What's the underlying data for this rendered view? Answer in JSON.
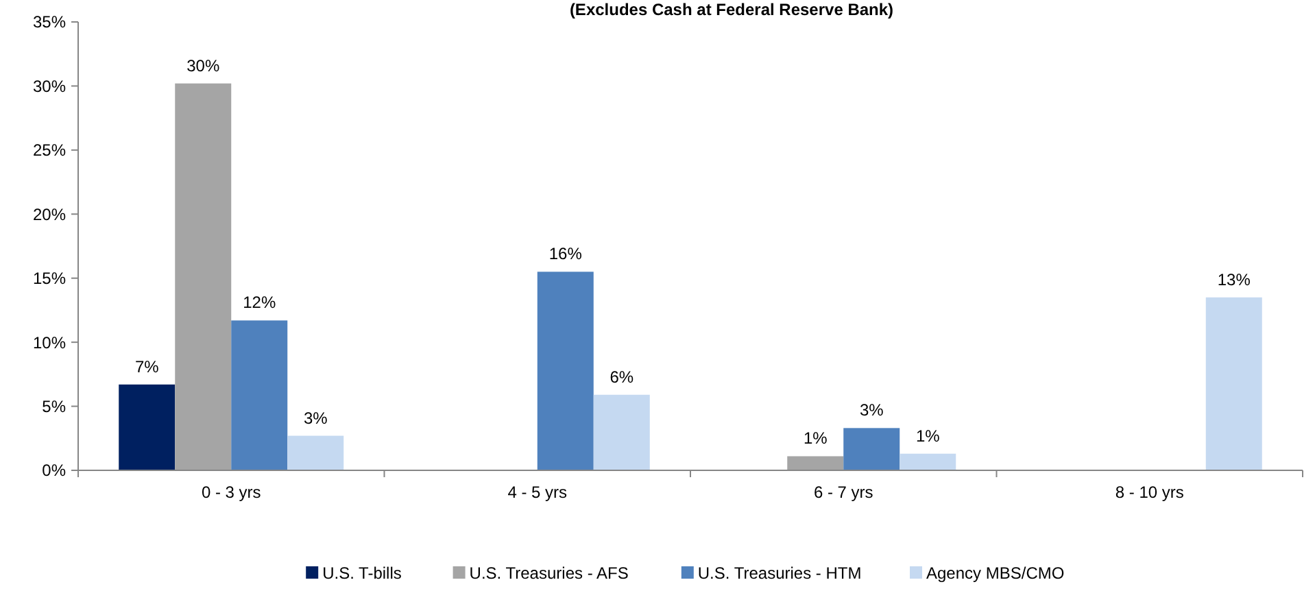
{
  "chart_data": {
    "type": "bar",
    "title": "(Excludes Cash at Federal Reserve Bank)",
    "categories": [
      "0 - 3 yrs",
      "4 - 5 yrs",
      "6 - 7 yrs",
      "8 - 10 yrs"
    ],
    "series": [
      {
        "name": "U.S. T-bills",
        "color": "#002060",
        "values": [
          6.7,
          null,
          null,
          null
        ],
        "value_labels": [
          "7%",
          null,
          null,
          null
        ]
      },
      {
        "name": "U.S. Treasuries - AFS",
        "color": "#a5a5a5",
        "values": [
          30.2,
          null,
          1.1,
          null
        ],
        "value_labels": [
          "30%",
          null,
          "1%",
          null
        ]
      },
      {
        "name": "U.S. Treasuries - HTM",
        "color": "#4f81bd",
        "values": [
          11.7,
          15.5,
          3.3,
          null
        ],
        "value_labels": [
          "12%",
          "16%",
          "3%",
          null
        ]
      },
      {
        "name": "Agency MBS/CMO",
        "color": "#c5d9f1",
        "values": [
          2.7,
          5.9,
          1.3,
          13.5
        ],
        "value_labels": [
          "3%",
          "6%",
          "1%",
          "13%"
        ]
      }
    ],
    "ylim": [
      0,
      35
    ],
    "yticks": [
      {
        "value": 0,
        "label": "0%"
      },
      {
        "value": 5,
        "label": "5%"
      },
      {
        "value": 10,
        "label": "10%"
      },
      {
        "value": 15,
        "label": "15%"
      },
      {
        "value": 20,
        "label": "20%"
      },
      {
        "value": 25,
        "label": "25%"
      },
      {
        "value": 30,
        "label": "30%"
      },
      {
        "value": 35,
        "label": "35%"
      }
    ],
    "grid": false,
    "legend": "bottom"
  }
}
